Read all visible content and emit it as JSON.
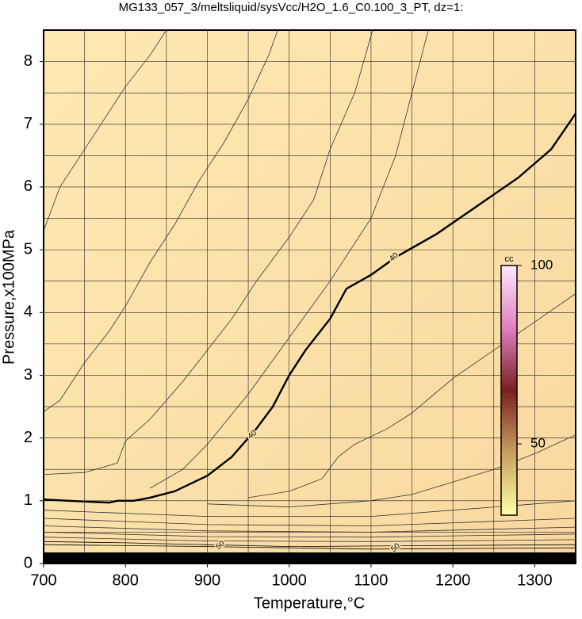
{
  "chart_data": {
    "type": "contour",
    "title": "MG133_057_3/meltsliquid/sysVcc/H2O_1.6_C0.100_3_PT, dz=1:",
    "x_label": "Temperature,°C",
    "y_label": "Pressure,x100MPa",
    "xlim": [
      700,
      1350
    ],
    "ylim": [
      0,
      8.5
    ],
    "xticks": [
      700,
      800,
      900,
      1000,
      1100,
      1200,
      1300
    ],
    "yticks": [
      0,
      1,
      2,
      3,
      4,
      5,
      6,
      7,
      8
    ],
    "xgrid": [
      750,
      800,
      850,
      900,
      950,
      1000,
      1050,
      1100,
      1150,
      1200,
      1250,
      1300
    ],
    "ygrid": [
      0.5,
      1,
      1.5,
      2,
      2.5,
      3,
      3.5,
      4,
      4.5,
      5,
      5.5,
      6,
      6.5,
      7,
      7.5,
      8
    ],
    "series": [
      {
        "color": "#000000",
        "thick": true,
        "level": "40",
        "label_at": [
          [
            955,
            2.05
          ],
          [
            1128,
            4.88
          ]
        ],
        "x": [
          700,
          730,
          780,
          790,
          810,
          830,
          860,
          900,
          930,
          960,
          980,
          1000,
          1020,
          1050,
          1070,
          1100,
          1130,
          1180,
          1230,
          1280,
          1320,
          1350
        ],
        "y": [
          1.02,
          1.0,
          0.97,
          1.0,
          1.0,
          1.05,
          1.15,
          1.4,
          1.7,
          2.15,
          2.5,
          3.0,
          3.4,
          3.9,
          4.38,
          4.6,
          4.88,
          5.25,
          5.7,
          6.15,
          6.6,
          7.17
        ]
      },
      {
        "color": "#333333",
        "x": [
          700,
          720,
          740,
          770,
          800,
          830,
          850
        ],
        "y": [
          5.3,
          6.0,
          6.4,
          7.0,
          7.6,
          8.1,
          8.5
        ]
      },
      {
        "color": "#333333",
        "x": [
          700,
          720,
          750,
          780,
          800,
          830,
          860,
          890,
          920,
          950,
          975,
          986
        ],
        "y": [
          2.42,
          2.6,
          3.2,
          3.7,
          4.1,
          4.8,
          5.4,
          6.1,
          6.7,
          7.4,
          8.1,
          8.5
        ]
      },
      {
        "color": "#333333",
        "x": [
          700,
          750,
          790,
          800,
          830,
          870,
          900,
          930,
          960,
          1000,
          1030,
          1050,
          1080,
          1102
        ],
        "y": [
          1.42,
          1.45,
          1.6,
          1.95,
          2.3,
          2.9,
          3.4,
          3.9,
          4.5,
          5.2,
          5.8,
          6.6,
          7.5,
          8.5
        ]
      },
      {
        "color": "#333333",
        "x": [
          830,
          870,
          900,
          950,
          1000,
          1050,
          1100,
          1130,
          1150,
          1170
        ],
        "y": [
          1.2,
          1.5,
          1.9,
          2.7,
          3.6,
          4.5,
          5.5,
          6.5,
          7.5,
          8.5
        ]
      },
      {
        "color": "#333333",
        "x": [
          950,
          1000,
          1040,
          1060,
          1080,
          1120,
          1150,
          1200,
          1250,
          1300,
          1350
        ],
        "y": [
          1.05,
          1.15,
          1.35,
          1.7,
          1.9,
          2.15,
          2.4,
          2.95,
          3.4,
          3.85,
          4.3
        ]
      },
      {
        "color": "#333333",
        "x": [
          900,
          1000,
          1100,
          1150,
          1200,
          1250,
          1300,
          1350
        ],
        "y": [
          0.95,
          0.9,
          1.0,
          1.1,
          1.3,
          1.5,
          1.75,
          2.05
        ]
      },
      {
        "color": "#333333",
        "x": [
          700,
          900,
          1100,
          1200,
          1300,
          1350
        ],
        "y": [
          0.85,
          0.75,
          0.75,
          0.85,
          0.95,
          1.0
        ]
      },
      {
        "color": "#333333",
        "x": [
          700,
          900,
          1100,
          1350
        ],
        "y": [
          0.72,
          0.62,
          0.6,
          0.72
        ]
      },
      {
        "color": "#333333",
        "x": [
          700,
          900,
          1100,
          1350
        ],
        "y": [
          0.6,
          0.52,
          0.5,
          0.58
        ]
      },
      {
        "color": "#333333",
        "x": [
          700,
          900,
          1100,
          1350
        ],
        "y": [
          0.5,
          0.43,
          0.42,
          0.47
        ]
      },
      {
        "color": "#333333",
        "x": [
          700,
          900,
          1100,
          1350
        ],
        "y": [
          0.42,
          0.36,
          0.35,
          0.38
        ]
      },
      {
        "color": "#000000",
        "x": [
          700,
          800,
          1000,
          1350
        ],
        "y": [
          0.35,
          0.33,
          0.27,
          0.3
        ]
      },
      {
        "color": "#000000",
        "level": "50",
        "label_at": [
          [
            916,
            0.29
          ],
          [
            1130,
            0.25
          ]
        ],
        "x": [
          700,
          900,
          1100,
          1350
        ],
        "y": [
          0.3,
          0.27,
          0.23,
          0.25
        ]
      }
    ],
    "colorbar": {
      "label": "cc",
      "lim": [
        30,
        100
      ],
      "ticks": [
        50,
        100
      ],
      "colors": [
        "#ffffa8",
        "#c8a060",
        "#7a2020",
        "#e080c0",
        "#ffe8ff"
      ]
    }
  }
}
